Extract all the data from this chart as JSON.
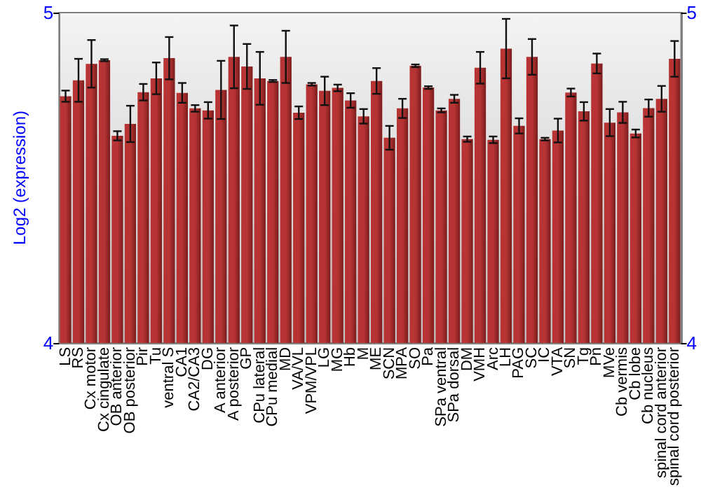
{
  "chart_data": {
    "type": "bar",
    "ylabel": "Log2 (expression)",
    "categories": [
      "LS",
      "RS",
      "Cx motor",
      "Cx cingulate",
      "OB anterior",
      "OB posterior",
      "Pir",
      "Tu",
      "ventral S",
      "CA1",
      "CA2/CA3",
      "DG",
      "A anterior",
      "A posterior",
      "GP",
      "CPu lateral",
      "CPu medial",
      "MD",
      "VA/VL",
      "VPM/VPL",
      "LG",
      "MG",
      "Hb",
      "M",
      "ME",
      "SCN",
      "MPA",
      "SO",
      "Pa",
      "SPa ventral",
      "SPa dorsal",
      "DM",
      "VMH",
      "Arc",
      "LH",
      "PAG",
      "SC",
      "IC",
      "VTA",
      "SN",
      "Tg",
      "Pn",
      "MVe",
      "Cb vermis",
      "Cb lobe",
      "Cb nucleus",
      "spinal cord anterior",
      "spinal cord posterior"
    ],
    "values": [
      4.747,
      4.795,
      4.845,
      4.856,
      4.627,
      4.663,
      4.759,
      4.801,
      4.862,
      4.757,
      4.71,
      4.704,
      4.766,
      4.866,
      4.837,
      4.801,
      4.793,
      4.866,
      4.697,
      4.783,
      4.763,
      4.772,
      4.734,
      4.686,
      4.793,
      4.621,
      4.71,
      4.839,
      4.773,
      4.704,
      4.739,
      4.617,
      4.833,
      4.615,
      4.891,
      4.657,
      4.866,
      4.617,
      4.643,
      4.758,
      4.701,
      4.846,
      4.667,
      4.698,
      4.634,
      4.711,
      4.739,
      4.86
    ],
    "errors": [
      0.017,
      0.065,
      0.072,
      0.003,
      0.014,
      0.055,
      0.025,
      0.048,
      0.064,
      0.03,
      0.01,
      0.025,
      0.088,
      0.095,
      0.068,
      0.08,
      0.003,
      0.079,
      0.019,
      0.004,
      0.043,
      0.01,
      0.022,
      0.022,
      0.039,
      0.036,
      0.029,
      0.004,
      0.004,
      0.006,
      0.012,
      0.008,
      0.048,
      0.01,
      0.09,
      0.023,
      0.054,
      0.004,
      0.036,
      0.012,
      0.028,
      0.03,
      0.041,
      0.032,
      0.012,
      0.026,
      0.039,
      0.054
    ],
    "color": "#b83434",
    "ylim": [
      4,
      5
    ],
    "yticks": [
      4,
      5
    ],
    "y2lim": [
      4,
      5
    ],
    "y2ticks": [
      4,
      5
    ],
    "grid": false
  }
}
